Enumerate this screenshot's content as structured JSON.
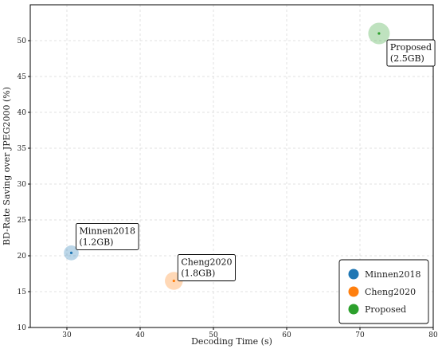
{
  "chart_data": {
    "type": "scatter",
    "xlabel": "Decoding Time (s)",
    "ylabel": "BD-Rate Saving over JPEG2000 (%)",
    "xlim": [
      25,
      80
    ],
    "ylim": [
      10,
      55
    ],
    "xticks": [
      30,
      40,
      50,
      60,
      70,
      80
    ],
    "yticks": [
      10,
      15,
      20,
      25,
      30,
      35,
      40,
      45,
      50
    ],
    "grid": true,
    "legend_position": "bottom-right",
    "series": [
      {
        "name": "Minnen2018",
        "color": "#1f77b4",
        "x": 30.6,
        "y": 20.4,
        "size_gb": 1.2,
        "annotation": [
          "Minnen2018",
          "(1.2GB)"
        ]
      },
      {
        "name": "Cheng2020",
        "color": "#ff7f0e",
        "x": 44.6,
        "y": 16.5,
        "size_gb": 1.8,
        "annotation": [
          "Cheng2020",
          "(1.8GB)"
        ]
      },
      {
        "name": "Proposed",
        "color": "#2ca02c",
        "x": 72.6,
        "y": 51.0,
        "size_gb": 2.5,
        "annotation": [
          "Proposed",
          "(2.5GB)"
        ]
      }
    ]
  }
}
